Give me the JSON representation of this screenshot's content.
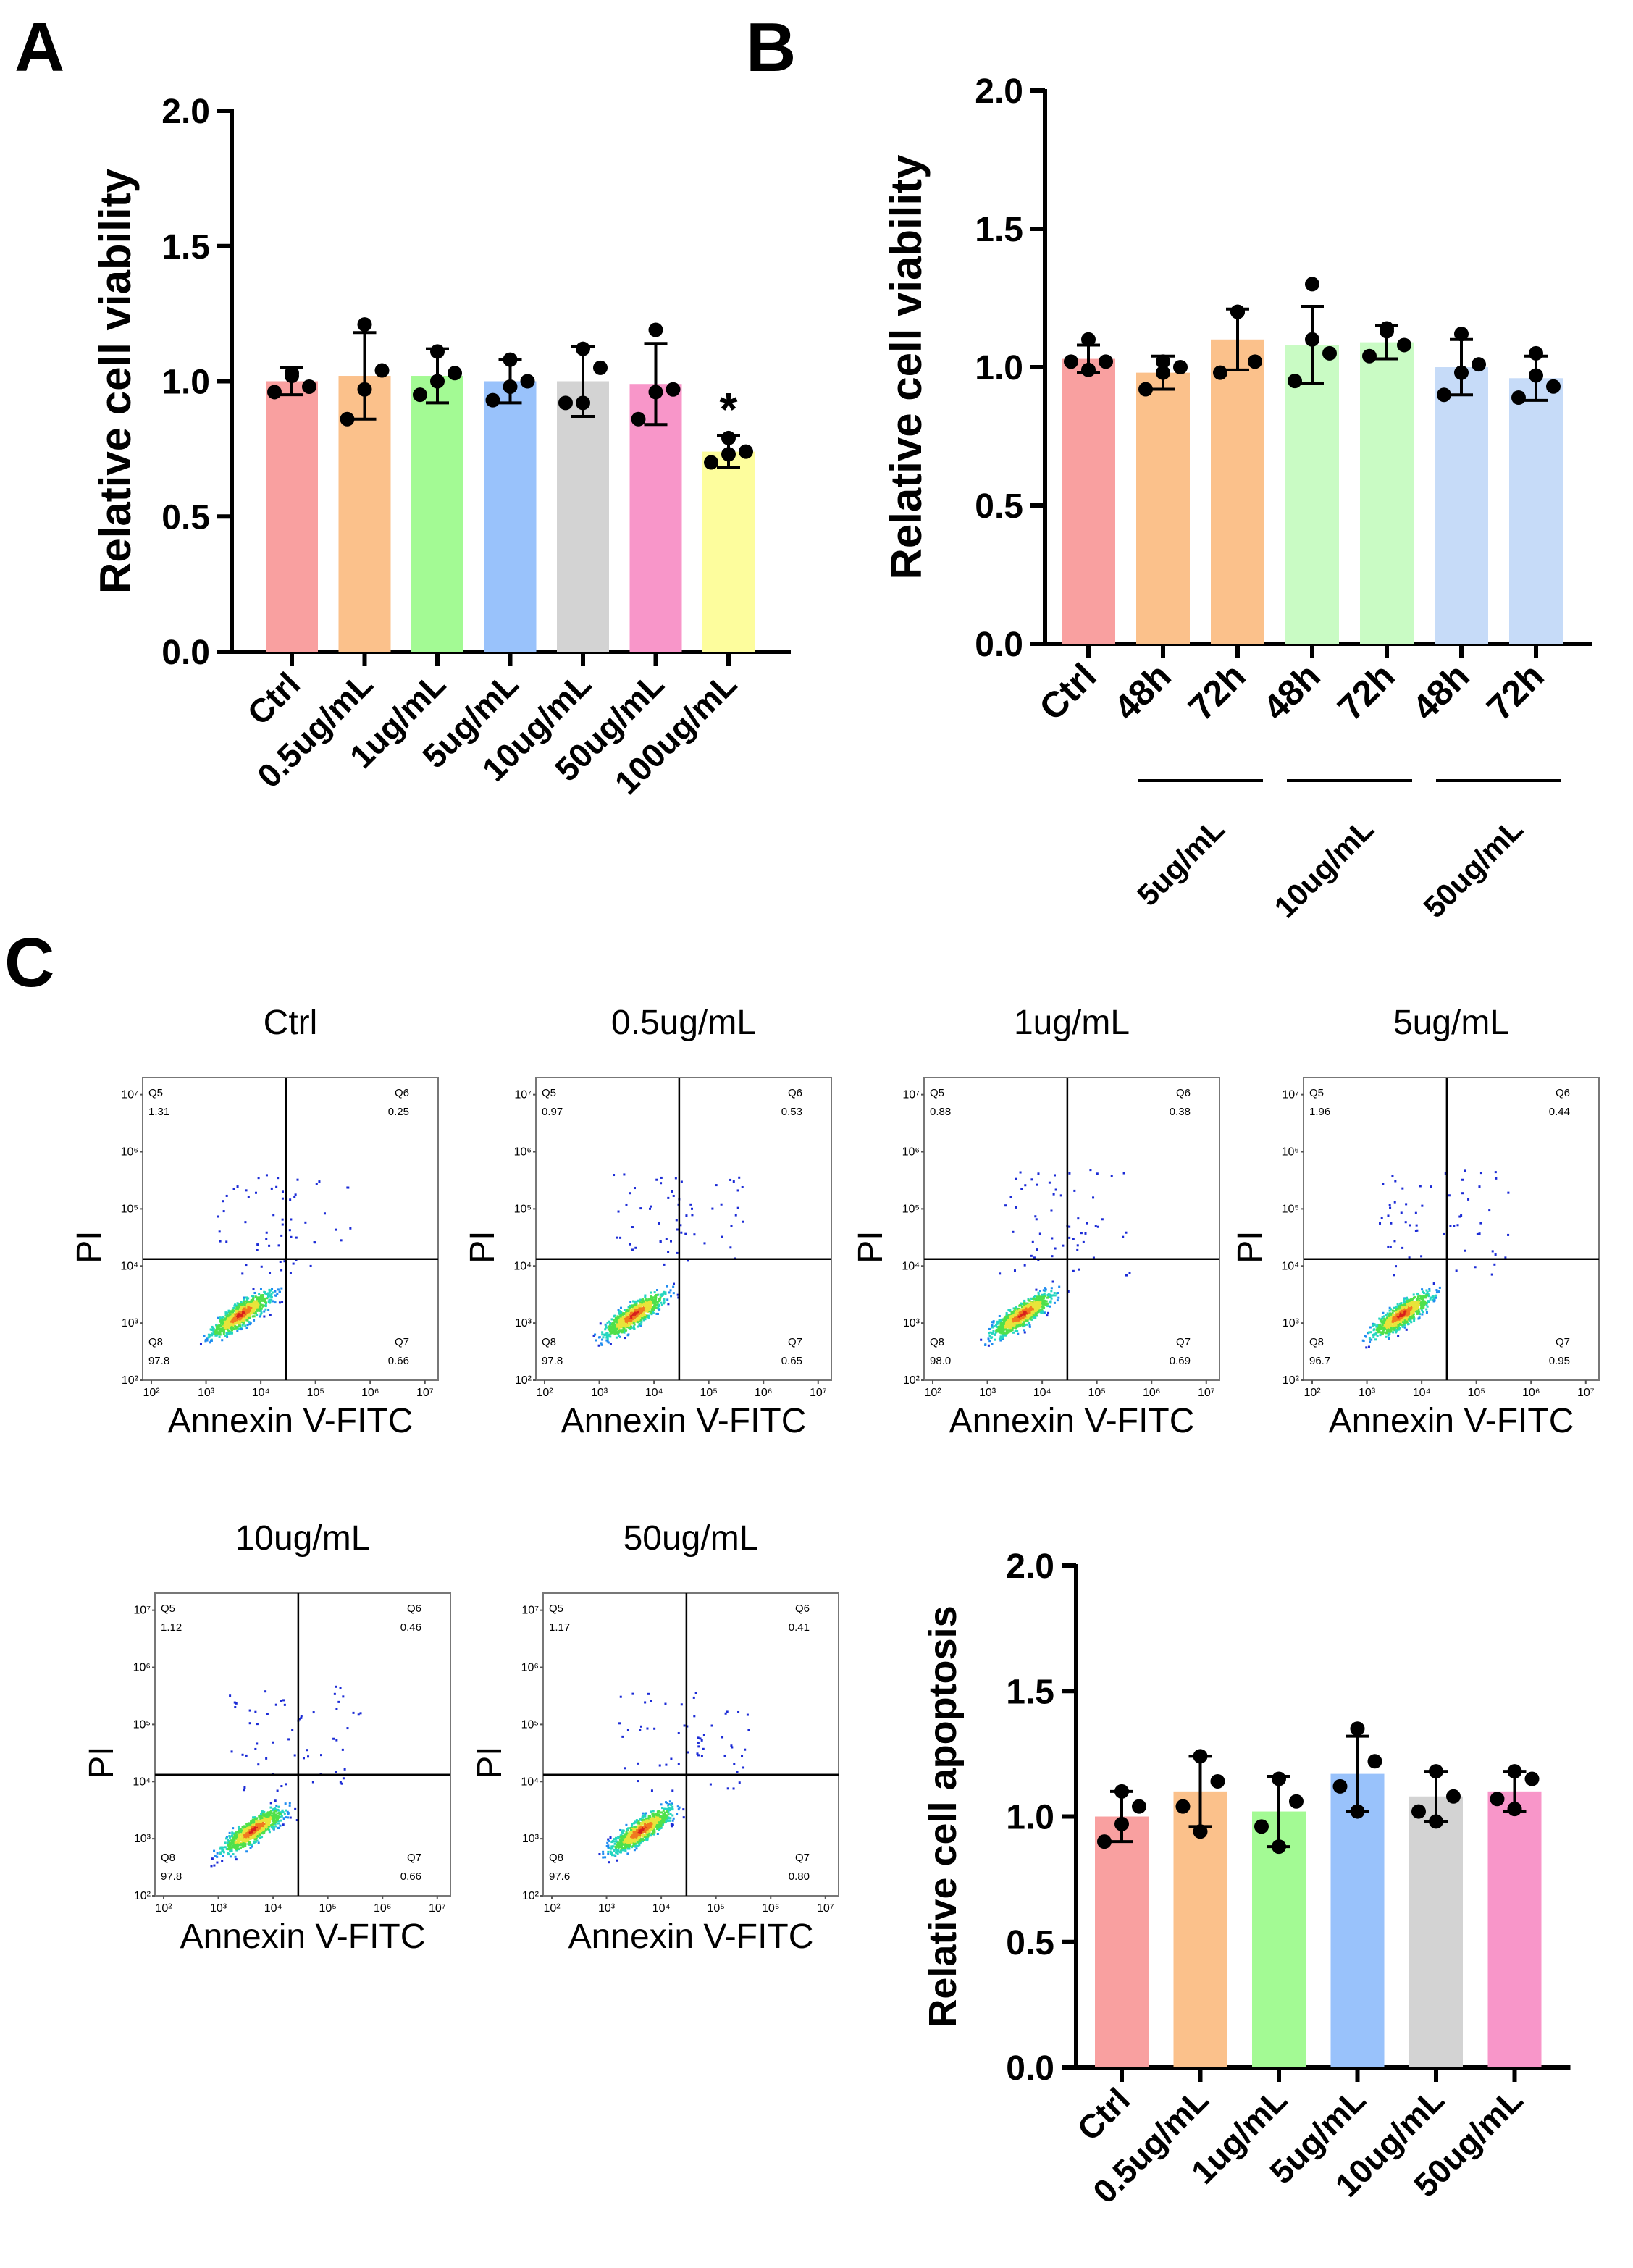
{
  "panel_labels": {
    "a": "A",
    "b": "B",
    "c": "C"
  },
  "chart_data": [
    {
      "id": "A",
      "type": "bar",
      "title": "",
      "ylabel": "Relative cell viability",
      "ylim": [
        0,
        2.0
      ],
      "yticks": [
        "0.0",
        "0.5",
        "1.0",
        "1.5",
        "2.0"
      ],
      "categories": [
        "Ctrl",
        "0.5ug/mL",
        "1ug/mL",
        "5ug/mL",
        "10ug/mL",
        "50ug/mL",
        "100ug/mL"
      ],
      "values": [
        1.0,
        1.02,
        1.02,
        1.0,
        1.0,
        0.99,
        0.74
      ],
      "errors": [
        0.05,
        0.16,
        0.1,
        0.08,
        0.13,
        0.15,
        0.06
      ],
      "points": [
        [
          1.03,
          0.98,
          0.96,
          1.02
        ],
        [
          1.21,
          1.04,
          0.86,
          0.97
        ],
        [
          1.11,
          1.03,
          0.95,
          1.0
        ],
        [
          1.08,
          1.0,
          0.93,
          0.98
        ],
        [
          1.12,
          1.05,
          0.92,
          0.92
        ],
        [
          1.19,
          0.97,
          0.86,
          0.96
        ],
        [
          0.79,
          0.74,
          0.7,
          0.73
        ]
      ],
      "colors": [
        "#f9a0a0",
        "#fbc18b",
        "#a3fa94",
        "#99c2fb",
        "#d3d3d3",
        "#f896c9",
        "#fdfd9d"
      ],
      "annotations": [
        {
          "category": "100ug/mL",
          "text": "*"
        }
      ]
    },
    {
      "id": "B",
      "type": "bar",
      "title": "",
      "ylabel": "Relative cell viability",
      "ylim": [
        0,
        2.0
      ],
      "yticks": [
        "0.0",
        "0.5",
        "1.0",
        "1.5",
        "2.0"
      ],
      "categories": [
        "Ctrl",
        "48h",
        "72h",
        "48h",
        "72h",
        "48h",
        "72h"
      ],
      "groups": [
        {
          "label": "5ug/mL",
          "from": 1,
          "to": 2
        },
        {
          "label": "10ug/mL",
          "from": 3,
          "to": 4
        },
        {
          "label": "50ug/mL",
          "from": 5,
          "to": 6
        }
      ],
      "values": [
        1.03,
        0.98,
        1.1,
        1.08,
        1.09,
        1.0,
        0.96
      ],
      "errors": [
        0.05,
        0.06,
        0.11,
        0.14,
        0.06,
        0.1,
        0.08
      ],
      "points": [
        [
          1.1,
          1.02,
          1.02,
          0.99
        ],
        [
          1.02,
          1.0,
          0.92,
          0.98
        ],
        [
          1.2,
          1.02,
          0.98,
          1.2
        ],
        [
          1.3,
          1.05,
          0.95,
          1.1
        ],
        [
          1.14,
          1.08,
          1.04,
          1.13
        ],
        [
          1.12,
          1.01,
          0.9,
          0.98
        ],
        [
          1.05,
          0.93,
          0.89,
          0.97
        ]
      ],
      "colors": [
        "#f9a0a0",
        "#fbc18b",
        "#fbc18b",
        "#c9fbc4",
        "#c9fbc4",
        "#c6dbf8",
        "#c6dbf8"
      ]
    },
    {
      "id": "C-bar",
      "type": "bar",
      "title": "",
      "ylabel": "Relative cell apoptosis",
      "ylim": [
        0,
        2.0
      ],
      "yticks": [
        "0.0",
        "0.5",
        "1.0",
        "1.5",
        "2.0"
      ],
      "categories": [
        "Ctrl",
        "0.5ug/mL",
        "1ug/mL",
        "5ug/mL",
        "10ug/mL",
        "50ug/mL"
      ],
      "values": [
        1.0,
        1.1,
        1.02,
        1.17,
        1.08,
        1.1
      ],
      "errors": [
        0.1,
        0.14,
        0.14,
        0.15,
        0.1,
        0.08
      ],
      "points": [
        [
          1.1,
          1.04,
          0.9,
          0.97
        ],
        [
          1.24,
          1.14,
          1.04,
          0.94
        ],
        [
          1.15,
          1.06,
          0.96,
          0.88
        ],
        [
          1.35,
          1.22,
          1.12,
          1.02
        ],
        [
          1.18,
          1.08,
          1.02,
          0.98
        ],
        [
          1.18,
          1.15,
          1.07,
          1.03
        ]
      ],
      "colors": [
        "#f9a0a0",
        "#fbc18b",
        "#a3fa94",
        "#99c2fb",
        "#d3d3d3",
        "#f896c9"
      ]
    },
    {
      "id": "C-flow",
      "type": "scatter",
      "xlabel": "Annexin V-FITC",
      "ylabel": "PI",
      "log_ticks": [
        "10²",
        "10³",
        "10⁴",
        "10⁵",
        "10⁶",
        "10⁷"
      ],
      "quadrant_names": [
        "Q5",
        "Q6",
        "Q8",
        "Q7"
      ],
      "plots": [
        {
          "title": "Ctrl",
          "q5": "1.31",
          "q6": "0.25",
          "q8": "97.8",
          "q7": "0.66"
        },
        {
          "title": "0.5ug/mL",
          "q5": "0.97",
          "q6": "0.53",
          "q8": "97.8",
          "q7": "0.65"
        },
        {
          "title": "1ug/mL",
          "q5": "0.88",
          "q6": "0.38",
          "q8": "98.0",
          "q7": "0.69"
        },
        {
          "title": "5ug/mL",
          "q5": "1.96",
          "q6": "0.44",
          "q8": "96.7",
          "q7": "0.95"
        },
        {
          "title": "10ug/mL",
          "q5": "1.12",
          "q6": "0.46",
          "q8": "97.8",
          "q7": "0.66"
        },
        {
          "title": "50ug/mL",
          "q5": "1.17",
          "q6": "0.41",
          "q8": "97.6",
          "q7": "0.80"
        }
      ]
    }
  ]
}
